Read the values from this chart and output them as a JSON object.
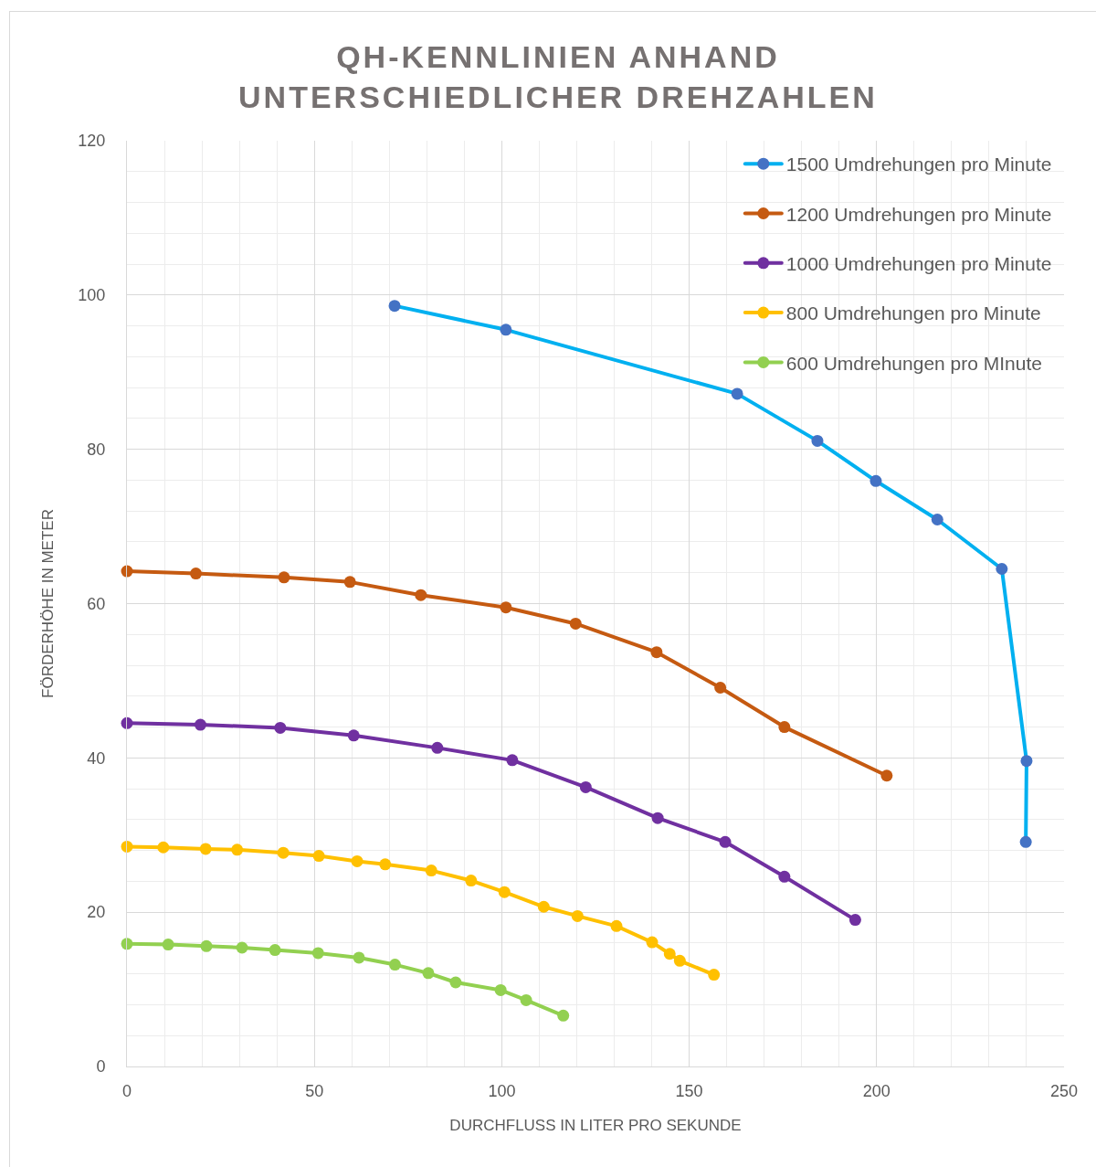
{
  "chart_data": {
    "type": "line",
    "title": "QH-KENNLINIEN ANHAND\nUNTERSCHIEDLICHER DREHZAHLEN",
    "xlabel": "DURCHFLUSS IN LITER PRO SEKUNDE",
    "ylabel": "FÖRDERHÖHE IN METER",
    "series": [
      {
        "name": "1500 Umdrehungen pro Minute",
        "color": "#00b0f0",
        "colors": [
          "#4472c4",
          "#4472c4",
          "#4472c4",
          "#4472c4",
          "#4472c4",
          "#4472c4",
          "#4472c4",
          "#4472c4",
          "#4472c4"
        ],
        "x": [
          71.4,
          101.1,
          162.8,
          184.2,
          199.8,
          216.2,
          233.4,
          240.0,
          239.8
        ],
        "values": [
          98.6,
          95.5,
          87.2,
          81.1,
          75.9,
          70.9,
          64.5,
          39.6,
          29.1
        ]
      },
      {
        "name": "1200 Umdrehungen pro Minute",
        "color": "#c55a11",
        "x": [
          0,
          18.4,
          41.9,
          59.5,
          78.4,
          101.1,
          119.7,
          141.3,
          158.3,
          175.4,
          202.7
        ],
        "values": [
          64.2,
          63.9,
          63.4,
          62.8,
          61.1,
          59.5,
          57.4,
          53.7,
          49.1,
          44.0,
          37.7
        ]
      },
      {
        "name": "1000 Umdrehungen pro Minute",
        "color": "#7030a0",
        "x": [
          0,
          19.6,
          40.9,
          60.5,
          82.8,
          102.8,
          122.4,
          141.6,
          159.6,
          175.4,
          194.3
        ],
        "values": [
          44.5,
          44.3,
          43.9,
          42.9,
          41.3,
          39.7,
          36.2,
          32.2,
          29.1,
          24.6,
          19.0
        ]
      },
      {
        "name": "800 Umdrehungen pro Minute",
        "color": "#ffc000",
        "x": [
          0,
          9.7,
          21.0,
          29.4,
          41.7,
          51.2,
          61.4,
          68.9,
          81.2,
          91.8,
          100.7,
          111.2,
          120.2,
          130.6,
          140.1,
          144.8,
          147.5,
          156.6
        ],
        "values": [
          28.5,
          28.4,
          28.2,
          28.1,
          27.7,
          27.3,
          26.6,
          26.2,
          25.4,
          24.1,
          22.6,
          20.7,
          19.5,
          18.2,
          16.1,
          14.6,
          13.7,
          11.9
        ]
      },
      {
        "name": "600 Umdrehungen pro MInute",
        "color": "#92d050",
        "x": [
          0,
          11.0,
          21.2,
          30.7,
          39.5,
          51.0,
          61.9,
          71.5,
          80.4,
          87.7,
          99.7,
          106.5,
          116.4
        ],
        "values": [
          15.9,
          15.8,
          15.6,
          15.4,
          15.1,
          14.7,
          14.1,
          13.2,
          12.1,
          10.9,
          9.9,
          8.6,
          6.6
        ]
      }
    ],
    "xlim": [
      0,
      250
    ],
    "ylim": [
      0,
      120
    ],
    "xticks": [
      0,
      {
        "value": 10,
        "label": null
      },
      {
        "value": 20,
        "label": null
      },
      {
        "value": 30,
        "label": null
      },
      {
        "value": 40,
        "label": null
      },
      50,
      {
        "value": 60,
        "label": null
      },
      {
        "value": 70,
        "label": null
      },
      {
        "value": 80,
        "label": null
      },
      {
        "value": 90,
        "label": null
      },
      100,
      {
        "value": 110,
        "label": null
      },
      {
        "value": 120,
        "label": null
      },
      {
        "value": 130,
        "label": null
      },
      {
        "value": 140,
        "label": null
      },
      150,
      {
        "value": 160,
        "label": null
      },
      {
        "value": 170,
        "label": null
      },
      {
        "value": 180,
        "label": null
      },
      {
        "value": 190,
        "label": null
      },
      200,
      {
        "value": 210,
        "label": null
      },
      {
        "value": 220,
        "label": null
      },
      {
        "value": 230,
        "label": null
      },
      {
        "value": 240,
        "label": null
      },
      250
    ],
    "yticks": [
      0,
      {
        "value": 4,
        "label": null
      },
      {
        "value": 8,
        "label": null
      },
      {
        "value": 12,
        "label": null
      },
      {
        "value": 16,
        "label": null
      },
      20,
      {
        "value": 24,
        "label": null
      },
      {
        "value": 28,
        "label": null
      },
      {
        "value": 32,
        "label": null
      },
      {
        "value": 36,
        "label": null
      },
      40,
      {
        "value": 44,
        "label": null
      },
      {
        "value": 48,
        "label": null
      },
      {
        "value": 52,
        "label": null
      },
      {
        "value": 56,
        "label": null
      },
      60,
      {
        "value": 64,
        "label": null
      },
      {
        "value": 68,
        "label": null
      },
      {
        "value": 72,
        "label": null
      },
      {
        "value": 76,
        "label": null
      },
      80,
      {
        "value": 84,
        "label": null
      },
      {
        "value": 88,
        "label": null
      },
      {
        "value": 92,
        "label": null
      },
      {
        "value": 96,
        "label": null
      },
      100,
      {
        "value": 104,
        "label": null
      },
      {
        "value": 108,
        "label": null
      },
      {
        "value": 112,
        "label": null
      },
      {
        "value": 116,
        "label": null
      },
      120
    ],
    "grid": true,
    "legend": "top right",
    "marker": "circle",
    "line_style": "solid"
  }
}
